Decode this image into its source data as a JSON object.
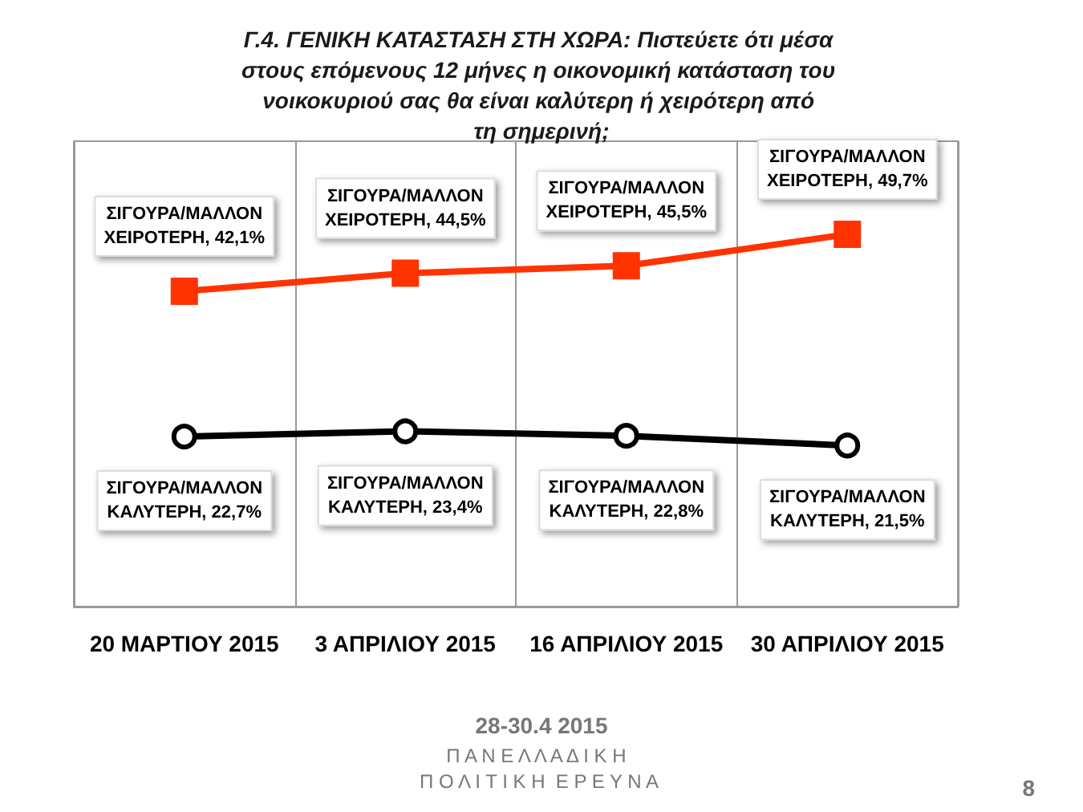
{
  "chart_data": {
    "type": "line",
    "title": "Γ.4. ΓΕΝΙΚΗ ΚΑΤΑΣΤΑΣΗ ΣΤΗ ΧΩΡΑ: Πιστεύετε ότι μέσα στους επόμενους 12 μήνες η οικονομική κατάσταση του νοικοκυριού σας θα είναι καλύτερη ή χειρότερη από τη σημερινή;",
    "categories": [
      "20 ΜΑΡΤΙΟΥ 2015",
      "3 ΑΠΡΙΛΙΟΥ 2015",
      "16 ΑΠΡΙΛΙΟΥ 2015",
      "30 ΑΠΡΙΛΙΟΥ 2015"
    ],
    "series": [
      {
        "color": "#ff3300",
        "marker": "square",
        "values": [
          42.1,
          44.5,
          45.5,
          49.7
        ],
        "value_labels": [
          "ΣΙΓΟΥΡΑ/ΜΑΛΛΟΝ\nΧΕΙΡΟΤΕΡΗ, 42,1%",
          "ΣΙΓΟΥΡΑ/ΜΑΛΛΟΝ\nΧΕΙΡΟΤΕΡΗ, 44,5%",
          "ΣΙΓΟΥΡΑ/ΜΑΛΛΟΝ\nΧΕΙΡΟΤΕΡΗ, 45,5%",
          "ΣΙΓΟΥΡΑ/ΜΑΛΛΟΝ\nΧΕΙΡΟΤΕΡΗ, 49,7%"
        ]
      },
      {
        "color": "#000000",
        "marker": "circle",
        "values": [
          22.7,
          23.4,
          22.8,
          21.5
        ],
        "value_labels": [
          "ΣΙΓΟΥΡΑ/ΜΑΛΛΟΝ\nΚΑΛΥΤΕΡΗ, 22,7%",
          "ΣΙΓΟΥΡΑ/ΜΑΛΛΟΝ\nΚΑΛΥΤΕΡΗ, 23,4%",
          "ΣΙΓΟΥΡΑ/ΜΑΛΛΟΝ\nΚΑΛΥΤΕΡΗ, 22,8%",
          "ΣΙΓΟΥΡΑ/ΜΑΛΛΟΝ\nΚΑΛΥΤΕΡΗ, 21,5%"
        ]
      }
    ],
    "grid": "x",
    "annotations": [
      "28-30.4 2015",
      "Π Α Ν Ε Λ Λ Α Δ Ι Κ Η",
      "Π Ο Λ Ι Τ Ι Κ Η  Ε Ρ Ε Υ Ν Α",
      "8"
    ]
  }
}
